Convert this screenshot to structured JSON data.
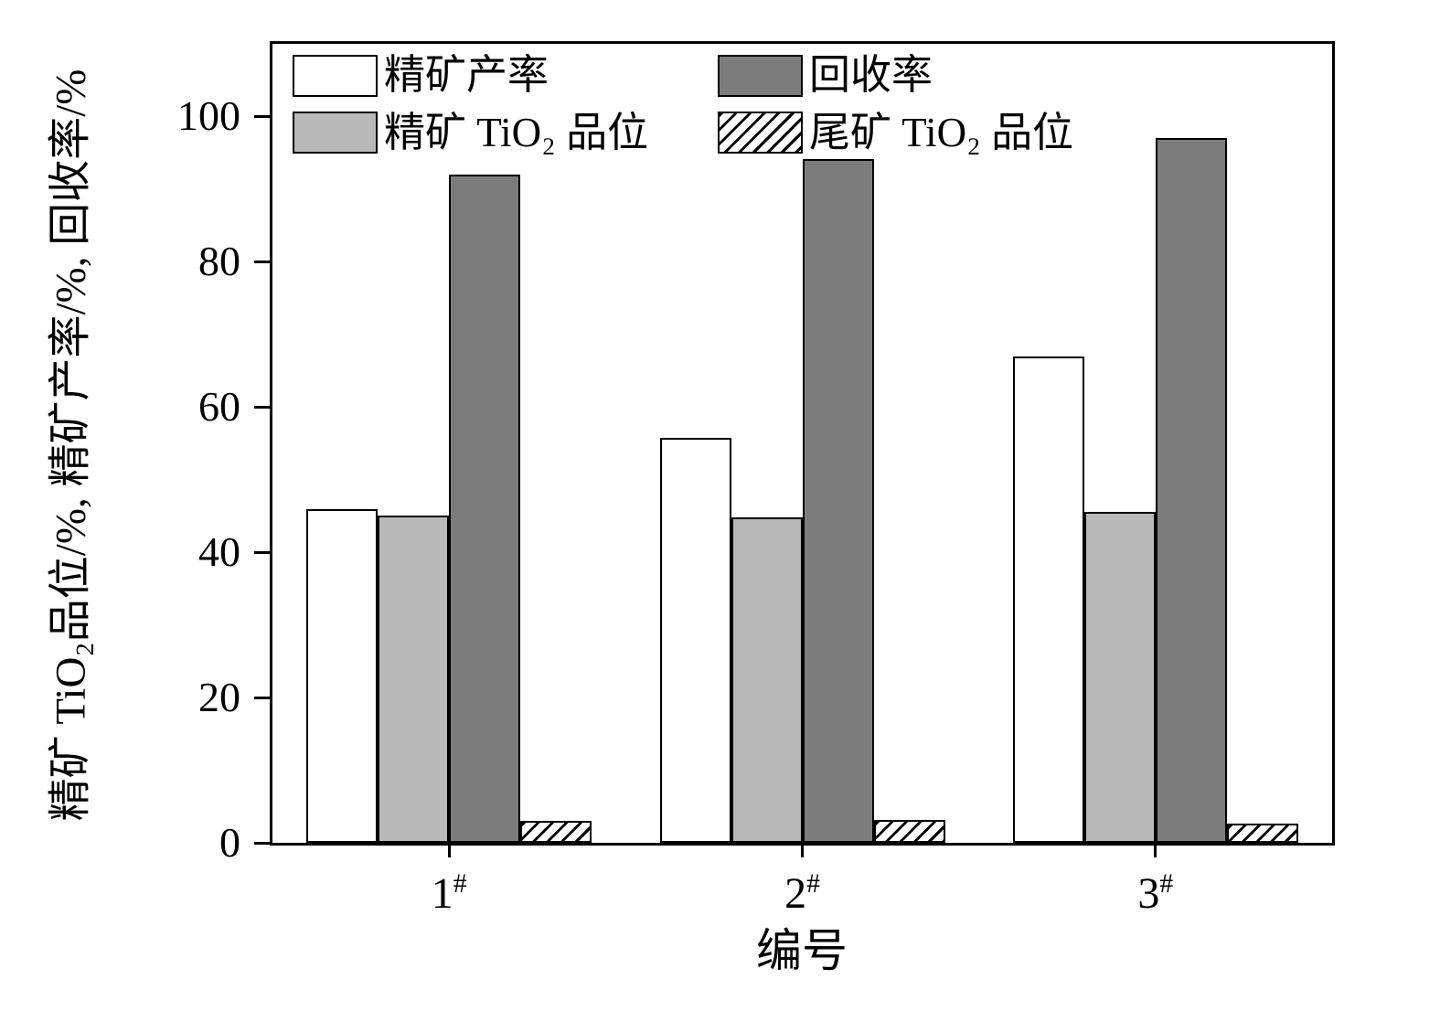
{
  "chart_data": {
    "type": "bar",
    "title": "",
    "xlabel": "编号",
    "ylabel": "精矿 TiO₂品位/%, 精矿产率/%, 回收率/%",
    "categories": [
      "1#",
      "2#",
      "3#"
    ],
    "series": [
      {
        "name": "精矿产率",
        "style": "white",
        "values": [
          46,
          55.8,
          67
        ]
      },
      {
        "name": "精矿 TiO₂ 品位",
        "style": "lightgray",
        "values": [
          45,
          44.8,
          45.5
        ]
      },
      {
        "name": "回收率",
        "style": "darkgray",
        "values": [
          92,
          94.2,
          97
        ]
      },
      {
        "name": "尾矿 TiO₂ 品位",
        "style": "hatched",
        "values": [
          3,
          3.2,
          2.6
        ]
      }
    ],
    "ylim": [
      0,
      110
    ],
    "yticks": [
      0,
      20,
      40,
      60,
      80,
      100
    ],
    "grid": false,
    "legend_position": "top-left-inside",
    "legend_order": [
      0,
      2,
      1,
      3
    ],
    "colors": {
      "white": "#ffffff",
      "lightgray": "#b9b9b9",
      "darkgray": "#7c7c7c",
      "hatched": "white with black diagonal /// hatch",
      "axis": "#000000"
    }
  }
}
